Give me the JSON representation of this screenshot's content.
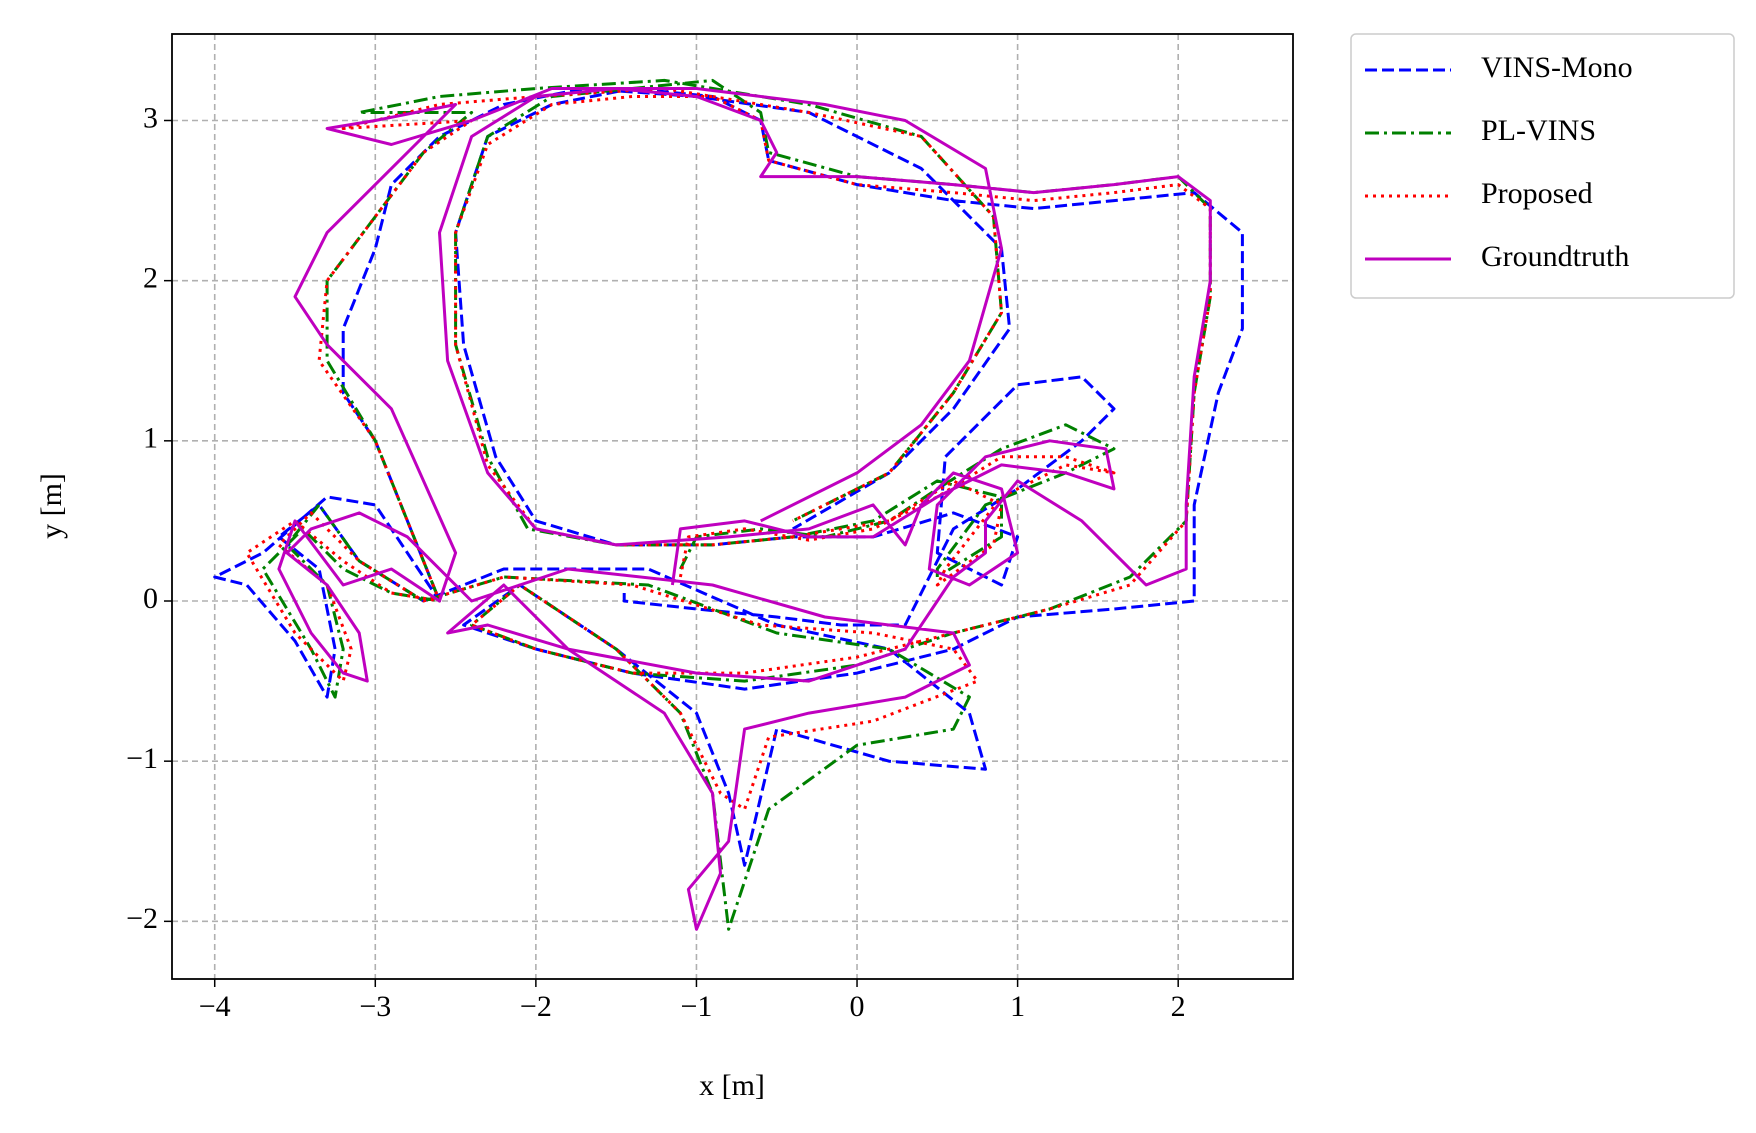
{
  "chart_data": {
    "type": "line",
    "xlabel": "x [m]",
    "ylabel": "y [m]",
    "xlim": [
      -4.266,
      2.715
    ],
    "ylim": [
      -2.36,
      3.54
    ],
    "xticks": [
      {
        "value": -4,
        "label": "−4"
      },
      {
        "value": -3,
        "label": "−3"
      },
      {
        "value": -2,
        "label": "−2"
      },
      {
        "value": -1,
        "label": "−1"
      },
      0,
      1,
      2
    ],
    "yticks": [
      {
        "value": -2,
        "label": "−2"
      },
      {
        "value": -1,
        "label": "−1"
      },
      0,
      1,
      2,
      3
    ],
    "grid": true,
    "legend": "outside-upper-right",
    "series": [
      {
        "name": "VINS-Mono",
        "color": "#0000ff",
        "style": "dashed",
        "x": [
          -1.45,
          -1.45,
          -1.0,
          -0.5,
          -0.1,
          0.3,
          0.6,
          1.0,
          1.4,
          1.6,
          1.4,
          1.0,
          0.55,
          0.5,
          0.9,
          1.0,
          0.6,
          0.1,
          -0.4,
          -0.9,
          -1.5,
          -2.0,
          -2.25,
          -2.45,
          -2.5,
          -2.3,
          -1.9,
          -1.4,
          -0.9,
          -0.6,
          -0.55,
          0.0,
          0.6,
          1.1,
          1.6,
          2.1,
          2.4,
          2.4,
          2.25,
          2.1,
          2.1,
          1.6,
          1.0,
          0.6,
          0.0,
          -0.7,
          -1.4,
          -2.0,
          -2.45,
          -2.1,
          -1.5,
          -1.0,
          -0.8,
          -0.7,
          -0.5,
          0.2,
          0.8,
          0.7,
          0.2,
          -0.5,
          -1.3,
          -2.2,
          -2.7,
          -3.1,
          -3.35,
          -3.6,
          -3.35,
          -3.25,
          -3.3,
          -3.5,
          -3.8,
          -4.0,
          -3.7,
          -3.3,
          -3.0,
          -2.6,
          -3.0,
          -3.2,
          -3.2,
          -3.0,
          -2.9,
          -2.6,
          -2.2,
          -1.7,
          -1.0,
          -0.3,
          0.4,
          0.9,
          0.95,
          0.6,
          0.2,
          -0.4
        ],
        "values": [
          0.05,
          0.0,
          -0.05,
          -0.1,
          -0.15,
          -0.15,
          0.45,
          0.7,
          1.0,
          1.2,
          1.4,
          1.35,
          0.9,
          0.3,
          0.1,
          0.4,
          0.55,
          0.4,
          0.4,
          0.35,
          0.35,
          0.5,
          0.9,
          1.6,
          2.3,
          2.9,
          3.1,
          3.2,
          3.15,
          3.0,
          2.75,
          2.6,
          2.5,
          2.45,
          2.5,
          2.55,
          2.3,
          1.7,
          1.3,
          0.6,
          0.0,
          -0.05,
          -0.1,
          -0.3,
          -0.45,
          -0.55,
          -0.45,
          -0.3,
          -0.15,
          0.1,
          -0.3,
          -0.7,
          -1.2,
          -1.65,
          -0.8,
          -1.0,
          -1.05,
          -0.7,
          -0.3,
          -0.15,
          0.2,
          0.2,
          0.0,
          0.25,
          0.6,
          0.4,
          0.2,
          -0.3,
          -0.6,
          -0.25,
          0.1,
          0.15,
          0.3,
          0.65,
          0.6,
          0.0,
          1.0,
          1.3,
          1.7,
          2.2,
          2.6,
          2.9,
          3.1,
          3.2,
          3.15,
          3.05,
          2.7,
          2.2,
          1.7,
          1.2,
          0.8,
          0.45
        ]
      },
      {
        "name": "PL-VINS",
        "color": "#008000",
        "style": "dashdot",
        "x": [
          -1.1,
          -1.0,
          -0.6,
          -0.2,
          0.2,
          0.5,
          0.9,
          1.3,
          1.6,
          1.3,
          0.8,
          0.5,
          0.5,
          0.9,
          0.9,
          0.5,
          0.1,
          -0.4,
          -0.9,
          -1.5,
          -2.05,
          -2.3,
          -2.5,
          -2.5,
          -2.3,
          -1.9,
          -1.4,
          -0.9,
          -0.6,
          -0.55,
          0.0,
          0.6,
          1.1,
          1.6,
          2.0,
          2.2,
          2.2,
          2.1,
          2.05,
          1.7,
          1.2,
          0.6,
          0.0,
          -0.7,
          -1.4,
          -2.0,
          -2.4,
          -2.1,
          -1.5,
          -1.1,
          -0.9,
          -0.8,
          -0.55,
          0.0,
          0.6,
          0.7,
          0.2,
          -0.5,
          -1.3,
          -2.2,
          -2.7,
          -3.1,
          -3.35,
          -3.55,
          -3.3,
          -3.2,
          -3.25,
          -3.4,
          -3.7,
          -3.45,
          -3.2,
          -2.9,
          -2.6,
          -3.0,
          -3.3,
          -3.3,
          -3.0,
          -2.7,
          -2.4,
          -3.1,
          -2.6,
          -2.0,
          -1.2,
          -0.3,
          0.4,
          0.85,
          0.9,
          0.6,
          0.2,
          -0.4
        ],
        "values": [
          0.2,
          0.4,
          0.45,
          0.4,
          0.5,
          0.7,
          0.95,
          1.1,
          0.95,
          0.8,
          0.6,
          0.2,
          0.15,
          0.4,
          0.65,
          0.75,
          0.5,
          0.4,
          0.35,
          0.35,
          0.45,
          0.9,
          1.6,
          2.3,
          2.9,
          3.15,
          3.2,
          3.25,
          3.05,
          2.8,
          2.65,
          2.6,
          2.55,
          2.6,
          2.65,
          2.45,
          1.9,
          1.3,
          0.5,
          0.15,
          -0.05,
          -0.2,
          -0.4,
          -0.5,
          -0.45,
          -0.3,
          -0.15,
          0.1,
          -0.3,
          -0.7,
          -1.2,
          -2.05,
          -1.3,
          -0.9,
          -0.8,
          -0.6,
          -0.3,
          -0.2,
          0.1,
          0.15,
          0.0,
          0.25,
          0.6,
          0.35,
          0.1,
          -0.3,
          -0.6,
          -0.3,
          0.2,
          0.45,
          0.2,
          0.05,
          0.0,
          1.0,
          1.5,
          2.0,
          2.4,
          2.8,
          3.05,
          3.05,
          3.15,
          3.2,
          3.25,
          3.1,
          2.9,
          2.4,
          1.8,
          1.3,
          0.8,
          0.5
        ]
      },
      {
        "name": "Proposed",
        "color": "#ff0000",
        "style": "dotted",
        "x": [
          -1.1,
          -1.05,
          -0.7,
          -0.3,
          0.1,
          0.5,
          0.9,
          1.3,
          1.6,
          1.3,
          0.9,
          0.55,
          0.5,
          0.85,
          0.9,
          0.6,
          0.2,
          -0.4,
          -0.9,
          -1.5,
          -2.0,
          -2.3,
          -2.5,
          -2.5,
          -2.3,
          -1.9,
          -1.4,
          -0.9,
          -0.6,
          -0.55,
          0.0,
          0.6,
          1.1,
          1.6,
          2.0,
          2.2,
          2.2,
          2.1,
          2.05,
          1.7,
          1.2,
          0.6,
          0.0,
          -0.7,
          -1.4,
          -2.0,
          -2.4,
          -2.1,
          -1.5,
          -1.1,
          -0.85,
          -0.7,
          -0.55,
          0.1,
          0.75,
          0.6,
          0.1,
          -0.6,
          -1.4,
          -2.2,
          -2.7,
          -3.1,
          -3.4,
          -3.6,
          -3.3,
          -3.15,
          -3.2,
          -3.5,
          -3.8,
          -3.5,
          -3.2,
          -2.9,
          -2.6,
          -3.0,
          -3.35,
          -3.3,
          -3.0,
          -2.7,
          -2.4,
          -3.2,
          -2.6,
          -2.0,
          -1.2,
          -0.3,
          0.4,
          0.85,
          0.9,
          0.6,
          0.2,
          -0.4
        ],
        "values": [
          0.15,
          0.4,
          0.45,
          0.38,
          0.45,
          0.65,
          0.9,
          0.9,
          0.8,
          0.85,
          0.65,
          0.2,
          0.1,
          0.35,
          0.6,
          0.75,
          0.5,
          0.4,
          0.35,
          0.35,
          0.45,
          0.85,
          1.6,
          2.3,
          2.85,
          3.1,
          3.15,
          3.15,
          3.0,
          2.75,
          2.6,
          2.55,
          2.5,
          2.55,
          2.6,
          2.45,
          1.9,
          1.3,
          0.5,
          0.1,
          -0.05,
          -0.2,
          -0.35,
          -0.45,
          -0.45,
          -0.3,
          -0.15,
          0.1,
          -0.3,
          -0.7,
          -1.2,
          -1.3,
          -0.85,
          -0.75,
          -0.5,
          -0.3,
          -0.2,
          -0.15,
          0.1,
          0.15,
          0.0,
          0.25,
          0.55,
          0.35,
          0.1,
          -0.3,
          -0.5,
          -0.2,
          0.3,
          0.5,
          0.25,
          0.05,
          0.0,
          1.0,
          1.5,
          2.0,
          2.4,
          2.8,
          3.0,
          2.95,
          3.1,
          3.15,
          3.2,
          3.05,
          2.9,
          2.4,
          1.8,
          1.3,
          0.8,
          0.5
        ]
      },
      {
        "name": "Groundtruth",
        "color": "#bf00bf",
        "style": "solid",
        "x": [
          -1.15,
          -1.1,
          -0.7,
          -0.3,
          0.1,
          0.5,
          0.9,
          1.3,
          1.6,
          1.55,
          1.2,
          0.8,
          0.5,
          0.45,
          0.7,
          1.0,
          0.9,
          0.6,
          0.4,
          0.3,
          0.1,
          -0.3,
          -0.8,
          -1.5,
          -2.0,
          -2.3,
          -2.55,
          -2.6,
          -2.4,
          -2.0,
          -1.5,
          -1.0,
          -0.6,
          -0.5,
          -0.6,
          0.0,
          0.6,
          1.1,
          1.6,
          2.0,
          2.2,
          2.2,
          2.1,
          2.05,
          2.05,
          1.8,
          1.4,
          1.0,
          0.8,
          0.8,
          0.6,
          0.3,
          -0.3,
          -1.0,
          -1.8,
          -2.3,
          -2.55,
          -2.2,
          -1.8,
          -1.2,
          -0.9,
          -0.85,
          -1.0,
          -1.05,
          -0.8,
          -0.7,
          -0.3,
          0.3,
          0.7,
          0.6,
          -0.2,
          -0.9,
          -1.8,
          -2.4,
          -2.8,
          -3.1,
          -3.4,
          -3.55,
          -3.3,
          -3.1,
          -3.05,
          -3.2,
          -3.4,
          -3.6,
          -3.5,
          -3.2,
          -2.9,
          -2.6,
          -2.5,
          -2.9,
          -3.3,
          -3.5,
          -3.3,
          -3.0,
          -2.7,
          -2.5,
          -3.0,
          -3.3,
          -2.9,
          -2.4,
          -1.9,
          -1.0,
          -0.2,
          0.3,
          0.8,
          0.9,
          0.7,
          0.4,
          0.0,
          -0.6
        ],
        "values": [
          0.1,
          0.45,
          0.5,
          0.4,
          0.4,
          0.65,
          0.85,
          0.8,
          0.7,
          0.95,
          1.0,
          0.9,
          0.6,
          0.2,
          0.1,
          0.3,
          0.7,
          0.8,
          0.6,
          0.35,
          0.6,
          0.45,
          0.4,
          0.35,
          0.45,
          0.8,
          1.5,
          2.3,
          2.9,
          3.15,
          3.2,
          3.15,
          3.0,
          2.8,
          2.65,
          2.65,
          2.6,
          2.55,
          2.6,
          2.65,
          2.5,
          2.0,
          1.4,
          0.6,
          0.2,
          0.1,
          0.5,
          0.75,
          0.5,
          0.3,
          0.15,
          -0.3,
          -0.5,
          -0.45,
          -0.3,
          -0.15,
          -0.2,
          0.1,
          -0.3,
          -0.7,
          -1.2,
          -1.7,
          -2.05,
          -1.8,
          -1.5,
          -0.8,
          -0.7,
          -0.6,
          -0.4,
          -0.2,
          -0.1,
          0.1,
          0.2,
          0.0,
          0.4,
          0.55,
          0.45,
          0.3,
          0.1,
          -0.2,
          -0.5,
          -0.45,
          -0.2,
          0.2,
          0.5,
          0.1,
          0.2,
          0.0,
          0.3,
          1.2,
          1.6,
          1.9,
          2.3,
          2.6,
          2.9,
          3.1,
          3.0,
          2.95,
          2.85,
          3.0,
          3.2,
          3.2,
          3.1,
          3.0,
          2.7,
          2.2,
          1.5,
          1.1,
          0.8,
          0.5
        ]
      }
    ]
  }
}
